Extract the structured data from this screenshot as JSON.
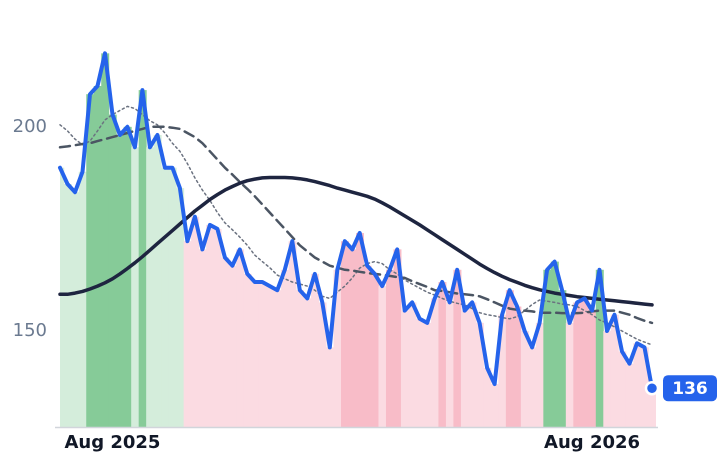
{
  "chart_data": {
    "type": "line",
    "categories": [
      null,
      null,
      null,
      null,
      null,
      null,
      null,
      "Aug 2025",
      null,
      null,
      null,
      null,
      null,
      null,
      null,
      null,
      null,
      null,
      null,
      null,
      null,
      null,
      null,
      null,
      null,
      null,
      null,
      null,
      null,
      null,
      null,
      null,
      null,
      null,
      null,
      null,
      null,
      null,
      null,
      null,
      null,
      null,
      null,
      null,
      null,
      null,
      null,
      null,
      null,
      null,
      null,
      null,
      null,
      null,
      null,
      null,
      null,
      null,
      null,
      null,
      null,
      null,
      null,
      null,
      null,
      null,
      null,
      null,
      null,
      null,
      null,
      "Aug 2026",
      null,
      null,
      null,
      null,
      null,
      null,
      null,
      null
    ],
    "series": [
      {
        "color": "#2563eb",
        "style": "solid",
        "width": 4,
        "values": [
          190,
          186,
          184,
          189,
          208,
          210,
          218,
          203,
          198,
          200,
          195,
          209,
          195,
          198,
          190,
          190,
          185,
          172,
          178,
          170,
          176,
          175,
          168,
          166,
          170,
          164,
          162,
          162,
          161,
          160,
          165,
          172,
          160,
          158,
          164,
          157,
          146,
          165,
          172,
          170,
          174,
          166,
          164,
          161,
          165,
          170,
          155,
          157,
          153,
          152,
          158,
          162,
          157,
          165,
          155,
          157,
          152,
          141,
          137,
          154,
          160,
          156,
          150,
          146,
          152,
          165,
          167,
          160,
          152,
          157,
          158,
          155,
          165,
          150,
          154,
          145,
          142,
          147,
          146,
          136
        ]
      },
      {
        "color": "#1e2540",
        "style": "solid",
        "width": 3.5,
        "values": [
          159,
          159,
          159.3,
          159.7,
          160.3,
          161,
          161.8,
          162.8,
          164,
          165.3,
          166.7,
          168.2,
          169.8,
          171.4,
          173,
          174.6,
          176.2,
          177.8,
          179.4,
          180.8,
          182.2,
          183.4,
          184.5,
          185.4,
          186.2,
          186.8,
          187.2,
          187.5,
          187.6,
          187.6,
          187.6,
          187.5,
          187.3,
          187,
          186.6,
          186.1,
          185.6,
          185,
          184.5,
          184,
          183.5,
          183,
          182.3,
          181.4,
          180.4,
          179.3,
          178.2,
          177.1,
          176,
          174.8,
          173.6,
          172.4,
          171.2,
          170,
          168.8,
          167.6,
          166.4,
          165.3,
          164.3,
          163.4,
          162.6,
          161.9,
          161.2,
          160.6,
          160.1,
          159.7,
          159.3,
          159,
          158.7,
          158.4,
          158.2,
          158,
          157.8,
          157.6,
          157.4,
          157.2,
          157,
          156.8,
          156.6,
          156.4
        ]
      },
      {
        "color": "#4b5563",
        "style": "dashed",
        "width": 2.5,
        "values": [
          195,
          195.2,
          195.5,
          195.8,
          196,
          196.5,
          197,
          197.5,
          198,
          198.5,
          199,
          199.5,
          200,
          200,
          200,
          199.8,
          199.5,
          198.5,
          197.5,
          196,
          194,
          192,
          190,
          188.3,
          186.5,
          184.8,
          183,
          181,
          179,
          177,
          175,
          173,
          171,
          169.5,
          168,
          167,
          166,
          165.5,
          165,
          164.8,
          164.5,
          164.2,
          164,
          163.8,
          163.5,
          163.2,
          163,
          162.2,
          161.5,
          160.8,
          160,
          159.8,
          159.5,
          159.2,
          159,
          158.8,
          158.5,
          157.8,
          157,
          156.2,
          155.5,
          155.2,
          155,
          154.8,
          154.5,
          154.5,
          154.5,
          154.4,
          154.4,
          154.4,
          154.5,
          154.8,
          155,
          155,
          155,
          154.5,
          154,
          153.2,
          152.5,
          152
        ]
      },
      {
        "color": "#6b7280",
        "style": "dotted",
        "width": 1.5,
        "values": [
          200.5,
          199,
          197,
          195.6,
          196.5,
          199,
          201.7,
          203,
          204,
          205,
          204.5,
          203,
          201.5,
          200.5,
          198.5,
          196,
          194,
          191,
          187.5,
          184.5,
          182,
          179,
          176.5,
          174.8,
          173,
          171,
          168.6,
          167,
          165.5,
          163.7,
          162.8,
          162,
          161.5,
          161,
          160,
          158.5,
          158,
          159.5,
          161,
          163,
          165.4,
          166.5,
          167,
          166.5,
          165,
          164,
          162.5,
          161.5,
          160.5,
          159.5,
          158.8,
          158,
          157.3,
          156.8,
          156.4,
          155.5,
          154.5,
          154,
          153.7,
          153.3,
          153,
          153.5,
          155,
          156.5,
          157.6,
          157.3,
          157,
          156.6,
          156.4,
          156,
          155,
          154,
          152.7,
          152,
          151,
          150,
          149,
          148,
          147.3,
          146.6
        ]
      }
    ],
    "bar_colors": {
      "up": "#86cb98",
      "up_light": "#d4eddb",
      "down": "#f8bcc8",
      "down_light": "#fbdbe2"
    },
    "ylim": [
      126.5,
      222
    ],
    "yticks": [
      150,
      200
    ],
    "grid": false
  }
}
